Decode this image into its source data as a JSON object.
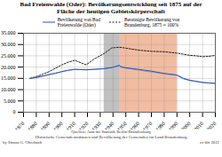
{
  "chart_data": {
    "type": "line",
    "title": "Bad Freienwalde (Oder): Bevölkerungsentwicklung seit 1875 auf der\nFläche der heutigen Gebietskörperschaft",
    "xlim": [
      1870,
      2020
    ],
    "ylim": [
      0,
      35000
    ],
    "xticks": [
      1870,
      1880,
      1890,
      1900,
      1910,
      1920,
      1930,
      1940,
      1950,
      1960,
      1970,
      1980,
      1990,
      2000,
      2010,
      2020
    ],
    "yticks": [
      0,
      {
        "value": 5000,
        "label": "5.000"
      },
      {
        "value": 10000,
        "label": "10.000"
      },
      {
        "value": 15000,
        "label": "15.000"
      },
      {
        "value": 20000,
        "label": "20.000"
      },
      {
        "value": 25000,
        "label": "25.000"
      },
      {
        "value": 30000,
        "label": "30.000"
      },
      {
        "value": 35000,
        "label": "35.000"
      }
    ],
    "grid": true,
    "periods": [
      {
        "start": 1933,
        "end": 1945,
        "color": "#c0c0c0"
      },
      {
        "start": 1945,
        "end": 1990,
        "color": "#f0b090"
      }
    ],
    "series": [
      {
        "name": "Bevölkerung von Bad\nFreienwalde (Oder)",
        "color": "#2255bb",
        "line_style": "solid",
        "x": [
          1875,
          1880,
          1885,
          1890,
          1895,
          1900,
          1905,
          1910,
          1919,
          1925,
          1933,
          1939,
          1945,
          1946,
          1950,
          1960,
          1965,
          1970,
          1980,
          1990,
          1995,
          2000,
          2005,
          2010,
          2015,
          2020
        ],
        "values": [
          15000,
          15400,
          16000,
          16700,
          17300,
          18000,
          18600,
          19000,
          18800,
          19000,
          19300,
          19800,
          20800,
          20200,
          19700,
          19000,
          18600,
          18200,
          17200,
          16500,
          15000,
          14200,
          13700,
          13200,
          13000,
          12800
        ]
      },
      {
        "color": "#8899cc",
        "line_style": "solid",
        "x": [
          1875,
          1880,
          1885,
          1890,
          1895,
          1900,
          1905,
          1910,
          1919,
          1925,
          1933,
          1939,
          1945,
          1946,
          1950,
          1960,
          1965,
          1970,
          1980,
          1990,
          1995,
          2000,
          2005,
          2010,
          2015,
          2020
        ],
        "values": [
          15000,
          15400,
          16000,
          16700,
          17300,
          18000,
          18600,
          19000,
          18800,
          19000,
          19300,
          19800,
          20500,
          20000,
          19500,
          18700,
          18200,
          17800,
          17000,
          16300,
          14800,
          14000,
          13600,
          13100,
          12900,
          12700
        ]
      },
      {
        "name": "Bereinigte Bevölkerung von\nBrandenburg, 1875 = 100%",
        "color": "#222222",
        "line_style": "dashed",
        "x": [
          1875,
          1880,
          1885,
          1890,
          1895,
          1900,
          1905,
          1910,
          1919,
          1925,
          1933,
          1939,
          1945,
          1950,
          1960,
          1970,
          1980,
          1990,
          2000,
          2005,
          2010,
          2015,
          2020
        ],
        "values": [
          15000,
          15800,
          16800,
          18000,
          19500,
          21000,
          22200,
          23000,
          21000,
          23500,
          26000,
          28500,
          28800,
          28400,
          27500,
          27000,
          26800,
          26200,
          25200,
          25000,
          24600,
          24800,
          25200
        ]
      }
    ],
    "annotations": [
      "Quellen: Amt für Statistik Berlin-Brandenburg",
      "Historische Gemeindestrukturen und Bevölkerung der Gemeinden im Land Brandenburg",
      "by Simon G. Oberbach",
      "cc-0ft 2012"
    ]
  }
}
